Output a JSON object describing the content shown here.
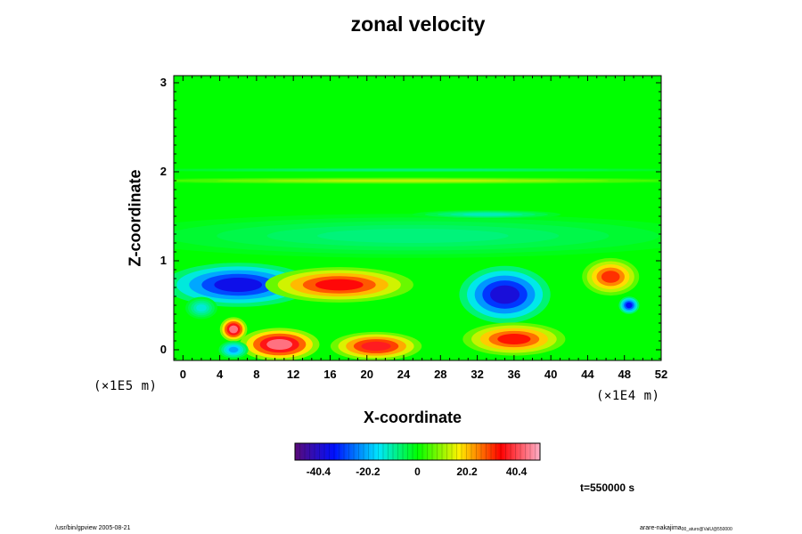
{
  "chart_data": {
    "type": "heatmap",
    "title": "zonal velocity",
    "xlabel": "X-coordinate",
    "ylabel": "Z-coordinate",
    "x_unit": "(×1E4 m)",
    "y_unit": "(×1E5 m)",
    "xlim": [
      -1,
      52
    ],
    "ylim": [
      -0.12,
      3.08
    ],
    "x_ticks": [
      0,
      4,
      8,
      12,
      16,
      20,
      24,
      28,
      32,
      36,
      40,
      44,
      48,
      52
    ],
    "x_tick_labels": [
      "0",
      "4",
      "8",
      "12",
      "16",
      "20",
      "24",
      "28",
      "32",
      "36",
      "40",
      "44",
      "48",
      "52"
    ],
    "y_ticks": [
      0,
      1,
      2,
      3
    ],
    "y_tick_labels": [
      "0",
      "1",
      "2",
      "3"
    ],
    "colorbar": {
      "range": [
        -50,
        50
      ],
      "ticks": [
        -40.4,
        -20.2,
        0,
        20.2,
        40.4
      ],
      "tick_labels": [
        "-40.4",
        "-20.2",
        "0",
        "20.2",
        "40.4"
      ],
      "colors": [
        "#5a0a78",
        "#0010ff",
        "#00e6ff",
        "#00ff00",
        "#fff000",
        "#ff0000",
        "#ffb0c8"
      ]
    },
    "features": [
      {
        "x": 6,
        "z": 0.73,
        "rx": 6.5,
        "rz": 0.2,
        "value": -36
      },
      {
        "x": 2,
        "z": 0.47,
        "rx": 1.4,
        "rz": 0.1,
        "value": -14
      },
      {
        "x": 17,
        "z": 0.73,
        "rx": 6.5,
        "rz": 0.16,
        "value": 34
      },
      {
        "x": 21,
        "z": 0.04,
        "rx": 4,
        "rz": 0.13,
        "value": 36
      },
      {
        "x": 36,
        "z": 0.12,
        "rx": 4.5,
        "rz": 0.15,
        "value": 32
      },
      {
        "x": 35,
        "z": 0.62,
        "rx": 4,
        "rz": 0.26,
        "value": -38
      },
      {
        "x": 46.5,
        "z": 0.82,
        "rx": 2.5,
        "rz": 0.17,
        "value": 30
      },
      {
        "x": 48.5,
        "z": 0.5,
        "rx": 0.9,
        "rz": 0.08,
        "value": -34
      },
      {
        "x": 5.5,
        "z": 0.23,
        "rx": 1.2,
        "rz": 0.11,
        "value": 44
      },
      {
        "x": 10.5,
        "z": 0.06,
        "rx": 3.5,
        "rz": 0.15,
        "value": 44
      },
      {
        "x": 5.5,
        "z": 0.0,
        "rx": 1.3,
        "rz": 0.08,
        "value": -22
      },
      {
        "x": 25,
        "z": 1.28,
        "rx": 26,
        "rz": 0.2,
        "value": -8
      },
      {
        "x": 25,
        "z": 1.9,
        "rx": 26,
        "rz": 0.03,
        "value": 12
      },
      {
        "x": 25,
        "z": 2.02,
        "rx": 26,
        "rz": 0.02,
        "value": -8
      },
      {
        "x": 33,
        "z": 1.52,
        "rx": 6.5,
        "rz": 0.04,
        "value": -12
      }
    ],
    "time_label": "t=550000 s"
  },
  "footer": {
    "left": "/usr/bin/gpview 2005-08-21",
    "right_main": "arare-nakajima",
    "right_sub": "00_aturo@ValU@550000"
  }
}
